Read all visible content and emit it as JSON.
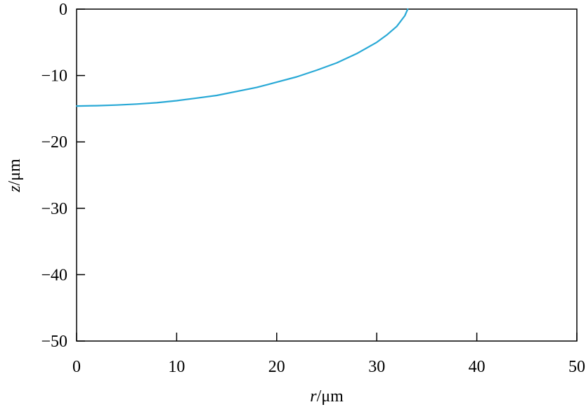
{
  "chart_data": {
    "type": "line",
    "title": "",
    "xlabel": {
      "var": "r",
      "unit": "/μm"
    },
    "ylabel": {
      "var": "z",
      "unit": "/μm"
    },
    "xlim": [
      0,
      50
    ],
    "ylim": [
      -50,
      0
    ],
    "x_ticks": [
      0,
      10,
      20,
      30,
      40,
      50
    ],
    "x_tick_labels": [
      "0",
      "10",
      "20",
      "30",
      "40",
      "50"
    ],
    "y_ticks": [
      0,
      -10,
      -20,
      -30,
      -40,
      -50
    ],
    "y_tick_labels": [
      "0",
      "−10",
      "−20",
      "−30",
      "−40",
      "−50"
    ],
    "grid": false,
    "legend": "none",
    "series": [
      {
        "color": "#29a9d6",
        "x": [
          0,
          2,
          4,
          6,
          8,
          10,
          12,
          14,
          16,
          18,
          20,
          22,
          24,
          26,
          28,
          30,
          31,
          32,
          32.8,
          33.1
        ],
        "y": [
          -14.6,
          -14.55,
          -14.45,
          -14.3,
          -14.1,
          -13.8,
          -13.4,
          -13.0,
          -12.4,
          -11.8,
          -11.0,
          -10.2,
          -9.2,
          -8.1,
          -6.7,
          -5.0,
          -3.9,
          -2.6,
          -1.0,
          0.0
        ]
      }
    ]
  }
}
